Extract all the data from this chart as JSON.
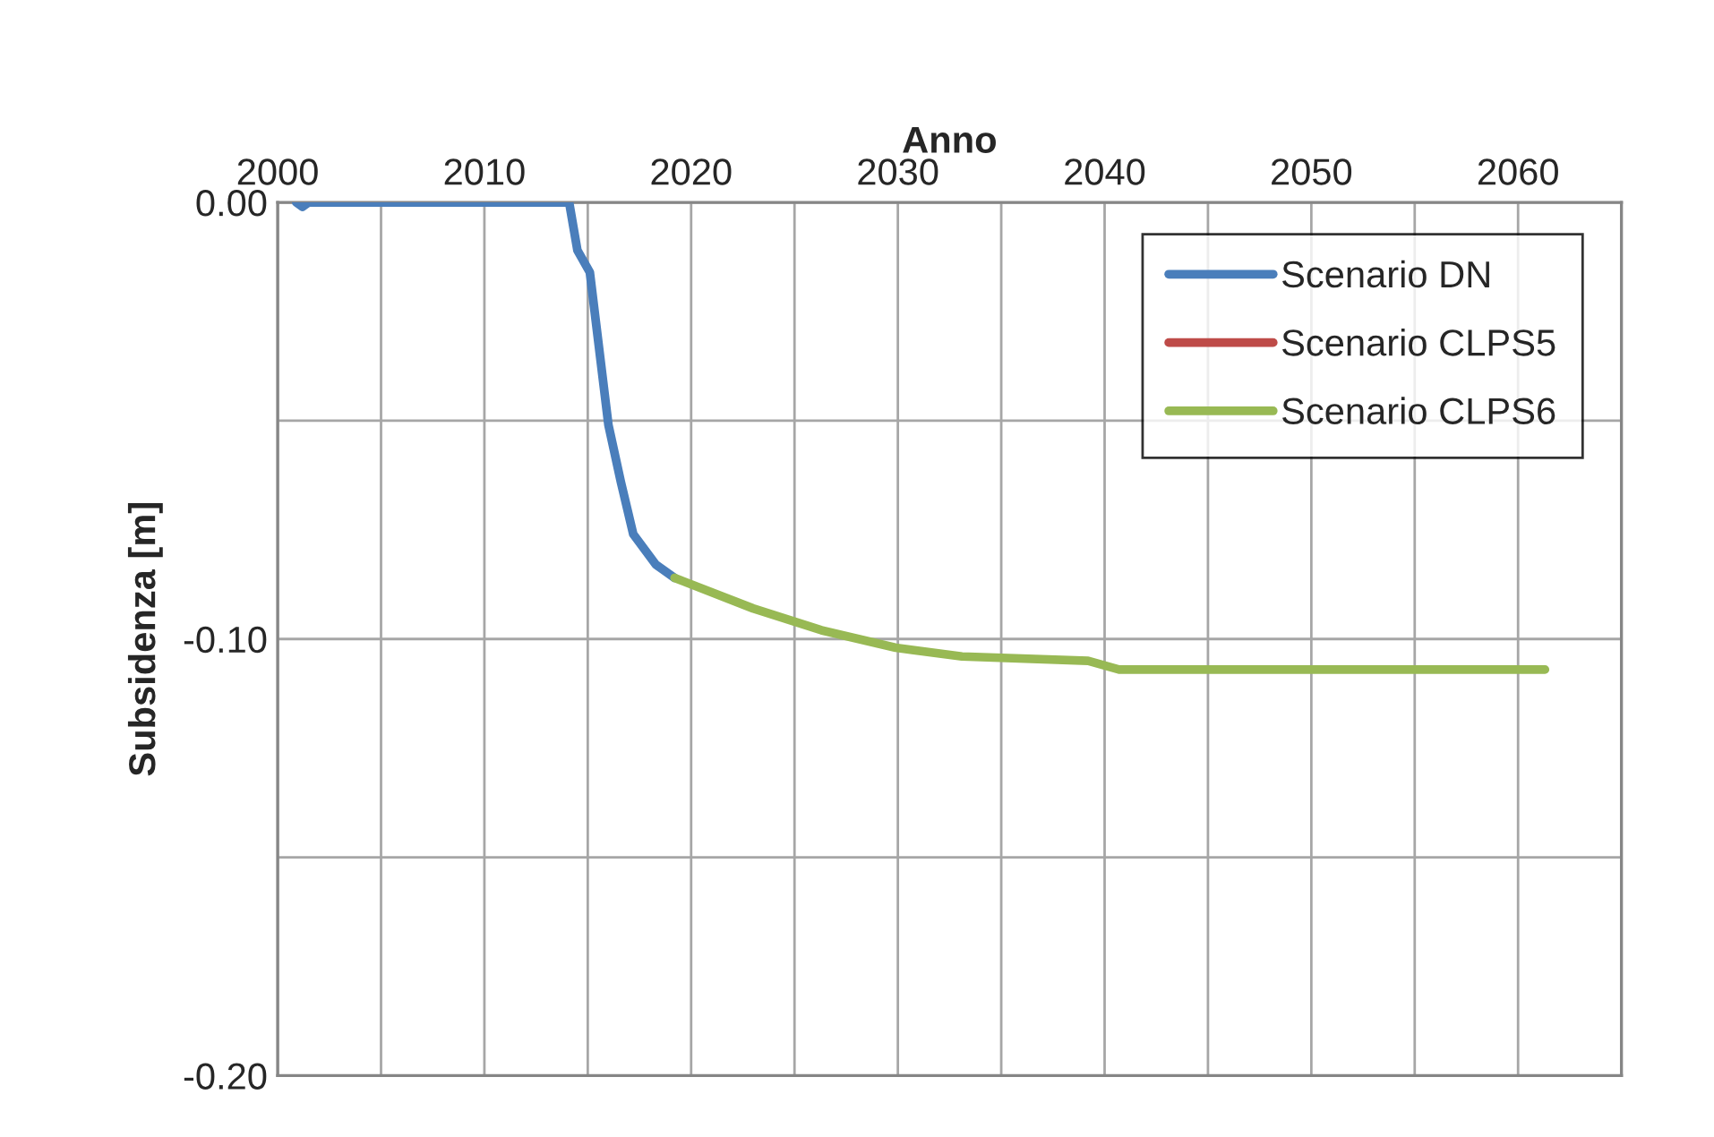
{
  "chart_data": {
    "type": "line",
    "xlabel": "Anno",
    "ylabel": "Subsidenza [m]",
    "xlim": [
      2000,
      2065
    ],
    "xticks": [
      2000,
      {
        "value": 2005,
        "label": null
      },
      2010,
      {
        "value": 2015,
        "label": null
      },
      2020,
      {
        "value": 2025,
        "label": null
      },
      2030,
      {
        "value": 2035,
        "label": null
      },
      2040,
      {
        "value": 2045,
        "label": null
      },
      2050,
      {
        "value": 2055,
        "label": null
      },
      2060,
      {
        "value": 2065,
        "label": null
      }
    ],
    "ylim": [
      -0.2,
      0.0
    ],
    "yticks": [
      {
        "value": 0.0,
        "label": "0.00"
      },
      {
        "value": -0.05,
        "label": null
      },
      {
        "value": -0.1,
        "label": "-0.10"
      },
      {
        "value": -0.15,
        "label": null
      },
      {
        "value": -0.2,
        "label": "-0.20"
      }
    ],
    "grid": true,
    "legend": "top right",
    "marker": "none",
    "line_style": "solid",
    "series": [
      {
        "name": "Scenario DN",
        "color": "#4a7ebb",
        "x": [
          2000.9,
          2001.2,
          2001.5,
          2005,
          2010,
          2014.1,
          2014.5,
          2015.1,
          2016.0,
          2016.6,
          2017.2,
          2018.3,
          2019.2
        ],
        "values": [
          0.0,
          -0.001,
          0.0,
          0.0,
          0.0,
          0.0,
          -0.011,
          -0.016,
          -0.051,
          -0.064,
          -0.076,
          -0.083,
          -0.086
        ]
      },
      {
        "name": "Scenario CLPS5",
        "color": "#be4b48"
      },
      {
        "name": "Scenario CLPS6",
        "color": "#98b954",
        "x": [
          2019.2,
          2023.0,
          2026.3,
          2029.9,
          2033.1,
          2039.2,
          2040.7,
          2061.3
        ],
        "values": [
          -0.086,
          -0.093,
          -0.098,
          -0.102,
          -0.104,
          -0.105,
          -0.107,
          -0.107
        ]
      }
    ]
  }
}
